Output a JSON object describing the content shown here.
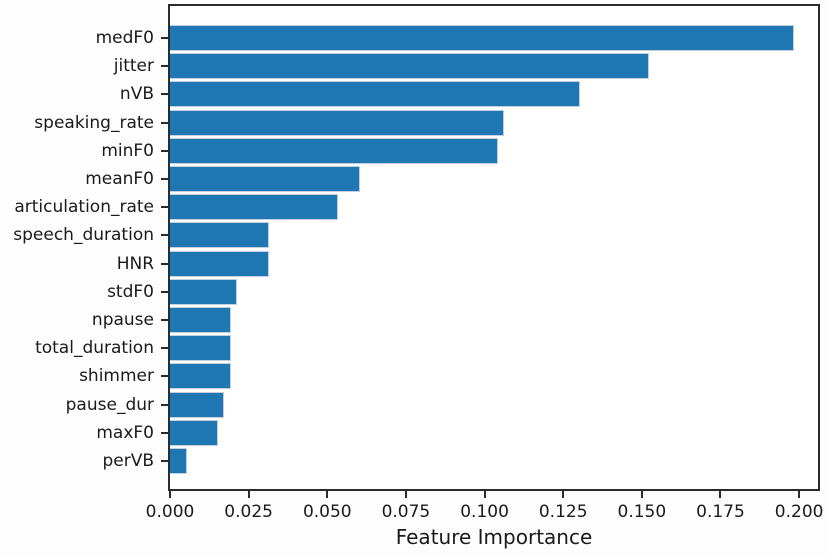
{
  "chart_data": {
    "type": "bar",
    "orientation": "horizontal",
    "title": "",
    "xlabel": "Feature Importance",
    "ylabel": "",
    "categories": [
      "medF0",
      "jitter",
      "nVB",
      "speaking_rate",
      "minF0",
      "meanF0",
      "articulation_rate",
      "speech_duration",
      "HNR",
      "stdF0",
      "npause",
      "total_duration",
      "shimmer",
      "pause_dur",
      "maxF0",
      "perVB"
    ],
    "values": [
      0.198,
      0.152,
      0.13,
      0.106,
      0.104,
      0.06,
      0.053,
      0.031,
      0.031,
      0.021,
      0.019,
      0.019,
      0.019,
      0.017,
      0.015,
      0.005
    ],
    "xlim": [
      0,
      0.206
    ],
    "x_ticks": [
      0.0,
      0.025,
      0.05,
      0.075,
      0.1,
      0.125,
      0.15,
      0.175,
      0.2
    ],
    "x_tick_labels": [
      "0.000",
      "0.025",
      "0.050",
      "0.075",
      "0.100",
      "0.125",
      "0.150",
      "0.175",
      "0.200"
    ],
    "bar_color": "#1f77b4",
    "axis_color": "#2b2b2b",
    "text_color": "#1a1a1a",
    "background_color": "#ffffff",
    "grid": false,
    "legend_position": "none"
  }
}
